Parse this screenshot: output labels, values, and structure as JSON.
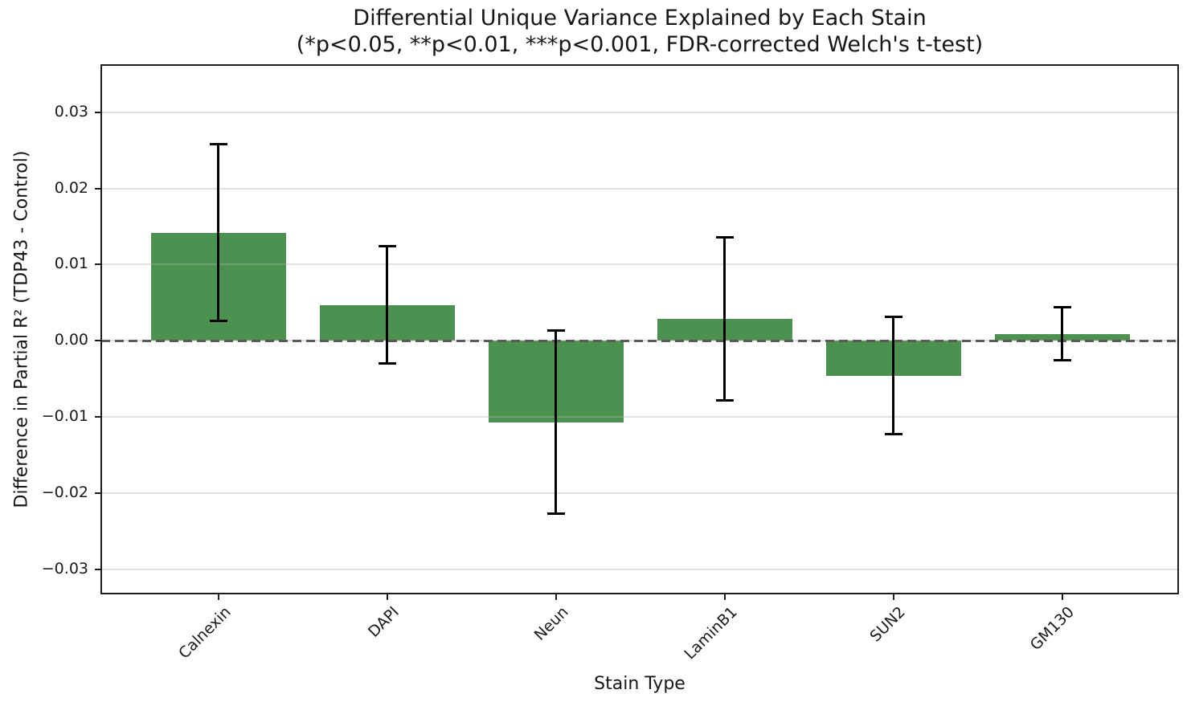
{
  "chart_data": {
    "type": "bar",
    "title": "Differential Unique Variance Explained by Each Stain",
    "subtitle": "(*p<0.05, **p<0.01, ***p<0.001, FDR-corrected Welch's t-test)",
    "xlabel": "Stain Type",
    "ylabel": "Difference in Partial R² (TDP43 - Control)",
    "categories": [
      "Calnexin",
      "DAPI",
      "Neun",
      "LaminB1",
      "SUN2",
      "GM130"
    ],
    "values": [
      0.0142,
      0.0047,
      -0.0107,
      0.0029,
      -0.0046,
      0.0009
    ],
    "error_bars": [
      0.0116,
      0.0077,
      0.012,
      0.0107,
      0.0077,
      0.0035
    ],
    "yticks": [
      0.03,
      0.02,
      0.01,
      0,
      -0.01,
      -0.02,
      -0.03
    ],
    "ytick_labels": [
      "0.03",
      "0.02",
      "0.01",
      "0.00",
      "−0.01",
      "−0.02",
      "−0.03"
    ],
    "ylim": [
      -0.0332,
      0.0362
    ],
    "xlim": [
      -0.694,
      5.687
    ],
    "bar_width": 0.8,
    "grid": "horizontal",
    "legend": null,
    "zero_line_style": "dashed",
    "colors": {
      "bar": "#4d9150",
      "error_bar": "#000000",
      "zero_line": "#595959",
      "grid": "#b0b0b0",
      "spine": "#1c1c1c",
      "text": "#1a1a1a"
    }
  }
}
